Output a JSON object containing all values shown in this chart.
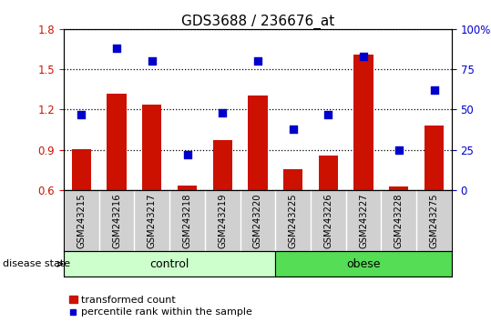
{
  "title": "GDS3688 / 236676_at",
  "samples": [
    "GSM243215",
    "GSM243216",
    "GSM243217",
    "GSM243218",
    "GSM243219",
    "GSM243220",
    "GSM243225",
    "GSM243226",
    "GSM243227",
    "GSM243228",
    "GSM243275"
  ],
  "bar_values": [
    0.905,
    1.32,
    1.235,
    0.635,
    0.975,
    1.305,
    0.755,
    0.855,
    1.61,
    0.625,
    1.08
  ],
  "dot_values": [
    47,
    88,
    80,
    22,
    48,
    80,
    38,
    47,
    83,
    25,
    62
  ],
  "ylim_left": [
    0.6,
    1.8
  ],
  "ylim_right": [
    0,
    100
  ],
  "yticks_left": [
    0.6,
    0.9,
    1.2,
    1.5,
    1.8
  ],
  "yticks_right": [
    0,
    25,
    50,
    75,
    100
  ],
  "bar_color": "#cc1100",
  "dot_color": "#0000cc",
  "n_control": 6,
  "n_obese": 5,
  "control_label": "control",
  "obese_label": "obese",
  "disease_state_label": "disease state",
  "legend_bar_label": "transformed count",
  "legend_dot_label": "percentile rank within the sample",
  "control_color": "#ccffcc",
  "obese_color": "#55dd55",
  "xticklabel_area_color": "#d0d0d0",
  "figsize": [
    5.39,
    3.54
  ],
  "dpi": 100
}
